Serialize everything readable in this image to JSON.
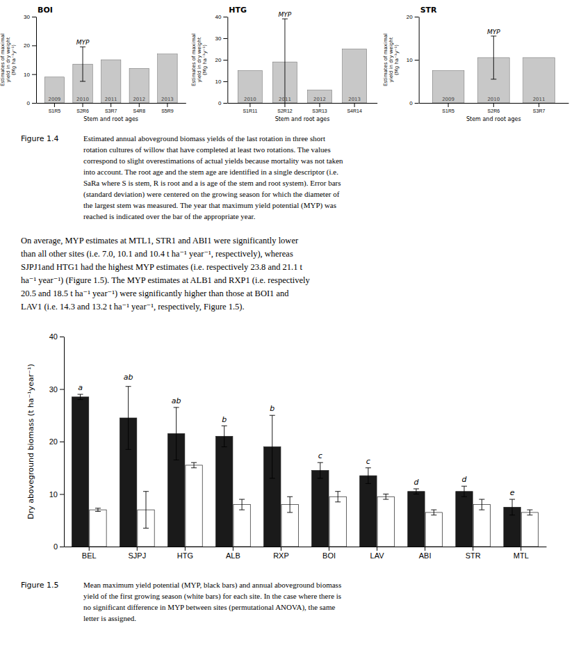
{
  "chart_data": [
    {
      "type": "bar",
      "title": "BOI",
      "ylabel": "Estimates of maximal\nyield in dry weight\n(Mg ha⁻¹y⁻¹)",
      "xlabel": "Stem and root ages",
      "categories": [
        "S1R5",
        "S2R6",
        "S3R7",
        "S4R8",
        "S5R9"
      ],
      "values": [
        9,
        13.5,
        15,
        12,
        17
      ],
      "errors": [
        0,
        6,
        0,
        0,
        0
      ],
      "bar_labels": [
        "2009",
        "2010",
        "2011",
        "2012",
        "2013"
      ],
      "annotations": [
        {
          "text": "MYP",
          "category": "S2R6"
        }
      ],
      "color": "#c8c8c8",
      "ylim": [
        0,
        30
      ],
      "yticks": [
        0,
        10,
        20,
        30
      ]
    },
    {
      "type": "bar",
      "title": "HTG",
      "ylabel": "Estimates of maximal\nyield in dry weight\n(Mg ha⁻¹y⁻¹)",
      "xlabel": "Stem and root ages",
      "categories": [
        "S1R11",
        "S2R12",
        "S3R13",
        "S4R14"
      ],
      "values": [
        15,
        19,
        6,
        25
      ],
      "errors": [
        0,
        20,
        0,
        0
      ],
      "bar_labels": [
        "2010",
        "2011",
        "2012",
        "2013"
      ],
      "annotations": [
        {
          "text": "MYP",
          "category": "S2R12"
        }
      ],
      "color": "#c8c8c8",
      "ylim": [
        0,
        40
      ],
      "yticks": [
        0,
        10,
        20,
        30,
        40
      ]
    },
    {
      "type": "bar",
      "title": "STR",
      "ylabel": "Estimates of maximal\nyield in dry weight\n(Mg ha⁻¹y⁻¹)",
      "xlabel": "Stem and root ages",
      "categories": [
        "S1R5",
        "S2R6",
        "S3R7"
      ],
      "values": [
        7.5,
        10.5,
        10.5
      ],
      "errors": [
        0,
        5,
        0
      ],
      "bar_labels": [
        "2009",
        "2010",
        "2011"
      ],
      "annotations": [
        {
          "text": "MYP",
          "category": "S2R6"
        }
      ],
      "color": "#c8c8c8",
      "ylim": [
        0,
        20
      ],
      "yticks": [
        0,
        10,
        20
      ]
    },
    {
      "type": "bar",
      "ylabel": "Dry aboveground biomass (t ha⁻¹year⁻¹)",
      "categories": [
        "BEL",
        "SJPJ",
        "HTG",
        "ALB",
        "RXP",
        "BOI",
        "LAV",
        "ABI",
        "STR",
        "MTL"
      ],
      "series": [
        {
          "color": "#1a1a1a",
          "values": [
            28.5,
            24.5,
            21.5,
            21.0,
            19.0,
            14.5,
            13.5,
            10.5,
            10.5,
            7.5
          ],
          "errors": [
            0.5,
            6,
            5,
            2,
            6,
            1.5,
            1.5,
            0.5,
            1.0,
            1.5
          ]
        },
        {
          "color": "#ffffff",
          "values": [
            7.0,
            7.0,
            15.5,
            8.0,
            8.0,
            9.5,
            9.5,
            6.5,
            8.0,
            6.5
          ],
          "errors": [
            0.3,
            3.5,
            0.5,
            1.0,
            1.5,
            1.0,
            0.5,
            0.5,
            1.0,
            0.5
          ]
        }
      ],
      "letters": [
        "a",
        "ab",
        "ab",
        "b",
        "b",
        "c",
        "c",
        "d",
        "d",
        "e"
      ],
      "letter_heights": [
        29.5,
        31.5,
        27.0,
        23.5,
        25.5,
        16.5,
        15.5,
        11.5,
        12.0,
        9.5
      ],
      "ylim": [
        0,
        40
      ],
      "yticks": [
        0,
        10,
        20,
        30,
        40
      ]
    }
  ],
  "captions": [
    {
      "label": "Figure 1.4",
      "lines": [
        "Estimated annual aboveground biomass yields of the last rotation in three short",
        "rotation cultures of willow that have completed at least two rotations. The values",
        "correspond to slight overestimations of actual yields because mortality was not taken",
        "into account. The root age and the stem age are identified in a single descriptor (i.e.",
        "SaRa where S is stem, R is root and a is age of the stem and root system). Error bars",
        "(standard deviation) were centered on the growing season for which the diameter of",
        "the largest stem was measured. The year that maximum yield potential (MYP) was",
        "reached is indicated over the bar of the appropriate year."
      ]
    },
    {
      "label": "Figure 1.5",
      "lines": [
        "Mean maximum yield potential (MYP, black bars) and annual aboveground biomass",
        "yield of the first growing season (white bars) for each site. In the case where there is",
        "no significant difference in MYP between sites (permutational ANOVA), the same",
        "letter is assigned."
      ]
    }
  ],
  "body_lines": [
    "On average, MYP estimates at MTL1, STR1 and ABI1 were significantly lower",
    "than all other sites (i.e. 7.0, 10.1 and 10.4 t ha⁻¹ year⁻¹, respectively), whereas",
    "SJPJ1and HTG1 had the highest MYP estimates (i.e. respectively 23.8 and 21.1 t",
    "ha⁻¹ year⁻¹) (Figure 1.5). The MYP estimates at ALB1 and RXP1 (i.e. respectively",
    "20.5 and 18.5 t ha⁻¹ year⁻¹) were significantly higher than those at BOI1 and",
    "LAV1 (i.e. 14.3 and 13.2 t ha⁻¹ year⁻¹, respectively, Figure 1.5)."
  ]
}
